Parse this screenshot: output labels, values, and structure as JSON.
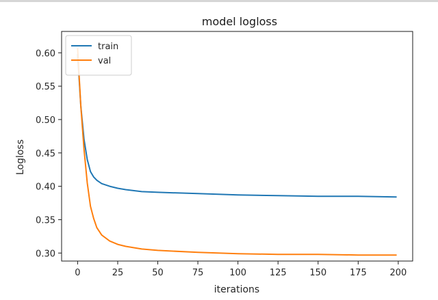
{
  "chart_data": {
    "type": "line",
    "title": "model logloss",
    "xlabel": "iterations",
    "ylabel": "Logloss",
    "xlim": [
      -10,
      209
    ],
    "ylim": [
      0.288,
      0.632
    ],
    "xticks": [
      0,
      25,
      50,
      75,
      100,
      125,
      150,
      175,
      200
    ],
    "yticks": [
      0.3,
      0.35,
      0.4,
      0.45,
      0.5,
      0.55,
      0.6
    ],
    "legend_position": "top-left",
    "grid": false,
    "series": [
      {
        "name": "train",
        "color": "#1f77b4",
        "x": [
          0,
          2,
          4,
          6,
          8,
          10,
          12,
          15,
          20,
          25,
          30,
          40,
          50,
          75,
          100,
          125,
          150,
          175,
          199
        ],
        "values": [
          0.598,
          0.52,
          0.47,
          0.44,
          0.422,
          0.414,
          0.409,
          0.404,
          0.4,
          0.397,
          0.395,
          0.392,
          0.391,
          0.389,
          0.387,
          0.386,
          0.385,
          0.385,
          0.384
        ]
      },
      {
        "name": "val",
        "color": "#ff7f0e",
        "x": [
          0,
          2,
          4,
          6,
          8,
          10,
          12,
          15,
          20,
          25,
          30,
          40,
          50,
          75,
          100,
          125,
          150,
          175,
          199
        ],
        "values": [
          0.607,
          0.52,
          0.455,
          0.405,
          0.37,
          0.352,
          0.338,
          0.327,
          0.318,
          0.313,
          0.31,
          0.306,
          0.304,
          0.301,
          0.299,
          0.298,
          0.298,
          0.297,
          0.297
        ]
      }
    ]
  }
}
